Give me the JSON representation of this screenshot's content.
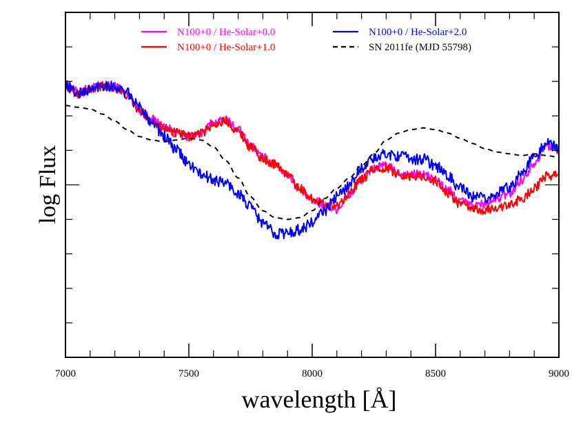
{
  "chart_data": {
    "type": "line",
    "xlabel": "wavelength [Å]",
    "ylabel": "log Flux",
    "xlim": [
      7000,
      9000
    ],
    "ylim": [
      -1.0,
      1.0
    ],
    "x_ticks": [
      7000,
      7500,
      8000,
      8500,
      9000
    ],
    "x_tick_labels": [
      "7000",
      "7500",
      "8000",
      "8500",
      "9000"
    ],
    "grid": false,
    "legend_position": "top",
    "series": [
      {
        "name": "N100+0 / He-Solar+0.0",
        "color": "#ff00ff",
        "style": "solid",
        "noise": 0.012,
        "x": [
          7000,
          7050,
          7100,
          7150,
          7200,
          7250,
          7300,
          7350,
          7400,
          7450,
          7500,
          7550,
          7600,
          7650,
          7700,
          7750,
          7800,
          7850,
          7900,
          7950,
          8000,
          8050,
          8100,
          8150,
          8200,
          8250,
          8300,
          8350,
          8400,
          8450,
          8500,
          8550,
          8600,
          8650,
          8700,
          8750,
          8800,
          8850,
          8900,
          8950,
          9000
        ],
        "y": [
          0.58,
          0.54,
          0.56,
          0.58,
          0.57,
          0.53,
          0.44,
          0.38,
          0.34,
          0.3,
          0.28,
          0.3,
          0.36,
          0.38,
          0.32,
          0.23,
          0.16,
          0.12,
          0.06,
          -0.03,
          -0.09,
          -0.12,
          -0.14,
          -0.06,
          0.03,
          0.1,
          0.11,
          0.07,
          0.06,
          0.06,
          0.03,
          -0.03,
          -0.09,
          -0.12,
          -0.11,
          -0.08,
          -0.05,
          0.03,
          0.13,
          0.23,
          0.2
        ]
      },
      {
        "name": "N100+0 / He-Solar+1.0",
        "color": "#ff0000",
        "style": "solid",
        "noise": 0.012,
        "x": [
          7000,
          7050,
          7100,
          7150,
          7200,
          7250,
          7300,
          7350,
          7400,
          7450,
          7500,
          7550,
          7600,
          7650,
          7700,
          7750,
          7800,
          7850,
          7900,
          7950,
          8000,
          8050,
          8100,
          8150,
          8200,
          8250,
          8300,
          8350,
          8400,
          8450,
          8500,
          8550,
          8600,
          8650,
          8700,
          8750,
          8800,
          8850,
          8900,
          8950,
          9000
        ],
        "y": [
          0.57,
          0.53,
          0.55,
          0.57,
          0.56,
          0.52,
          0.43,
          0.37,
          0.33,
          0.3,
          0.28,
          0.3,
          0.35,
          0.37,
          0.31,
          0.22,
          0.15,
          0.12,
          0.06,
          -0.02,
          -0.08,
          -0.11,
          -0.12,
          -0.05,
          0.03,
          0.09,
          0.1,
          0.06,
          0.05,
          0.05,
          0.02,
          -0.05,
          -0.11,
          -0.14,
          -0.15,
          -0.13,
          -0.12,
          -0.08,
          -0.02,
          0.05,
          0.06
        ]
      },
      {
        "name": "N100+0 / He-Solar+2.0",
        "color": "#0000ff",
        "style": "solid",
        "noise": 0.015,
        "x": [
          7000,
          7050,
          7100,
          7150,
          7200,
          7250,
          7300,
          7350,
          7400,
          7450,
          7500,
          7550,
          7600,
          7650,
          7700,
          7750,
          7800,
          7850,
          7900,
          7950,
          8000,
          8050,
          8100,
          8150,
          8200,
          8250,
          8300,
          8350,
          8400,
          8450,
          8500,
          8550,
          8600,
          8650,
          8700,
          8750,
          8800,
          8850,
          8900,
          8950,
          9000
        ],
        "y": [
          0.58,
          0.53,
          0.55,
          0.58,
          0.57,
          0.53,
          0.45,
          0.37,
          0.28,
          0.2,
          0.12,
          0.06,
          0.03,
          0.01,
          -0.05,
          -0.13,
          -0.22,
          -0.28,
          -0.28,
          -0.26,
          -0.22,
          -0.15,
          -0.07,
          0.0,
          0.1,
          0.15,
          0.18,
          0.17,
          0.15,
          0.15,
          0.11,
          0.05,
          -0.02,
          -0.07,
          -0.08,
          -0.05,
          -0.01,
          0.07,
          0.16,
          0.24,
          0.22
        ]
      },
      {
        "name": "SN 2011fe (MJD 55798)",
        "color": "#000000",
        "style": "dashed",
        "noise": 0,
        "x": [
          7000,
          7050,
          7100,
          7150,
          7200,
          7250,
          7300,
          7350,
          7400,
          7450,
          7500,
          7550,
          7600,
          7650,
          7700,
          7750,
          7800,
          7850,
          7900,
          7950,
          8000,
          8050,
          8100,
          8150,
          8200,
          8250,
          8300,
          8350,
          8400,
          8450,
          8500,
          8550,
          8600,
          8650,
          8700,
          8750,
          8800,
          8850,
          8900,
          8950,
          9000
        ],
        "y": [
          0.46,
          0.45,
          0.44,
          0.41,
          0.37,
          0.32,
          0.28,
          0.26,
          0.25,
          0.26,
          0.27,
          0.26,
          0.22,
          0.14,
          0.04,
          -0.07,
          -0.15,
          -0.19,
          -0.2,
          -0.19,
          -0.15,
          -0.08,
          -0.02,
          0.04,
          0.11,
          0.18,
          0.26,
          0.3,
          0.32,
          0.33,
          0.32,
          0.3,
          0.27,
          0.24,
          0.21,
          0.19,
          0.18,
          0.17,
          0.18,
          0.17,
          0.16
        ]
      }
    ]
  }
}
